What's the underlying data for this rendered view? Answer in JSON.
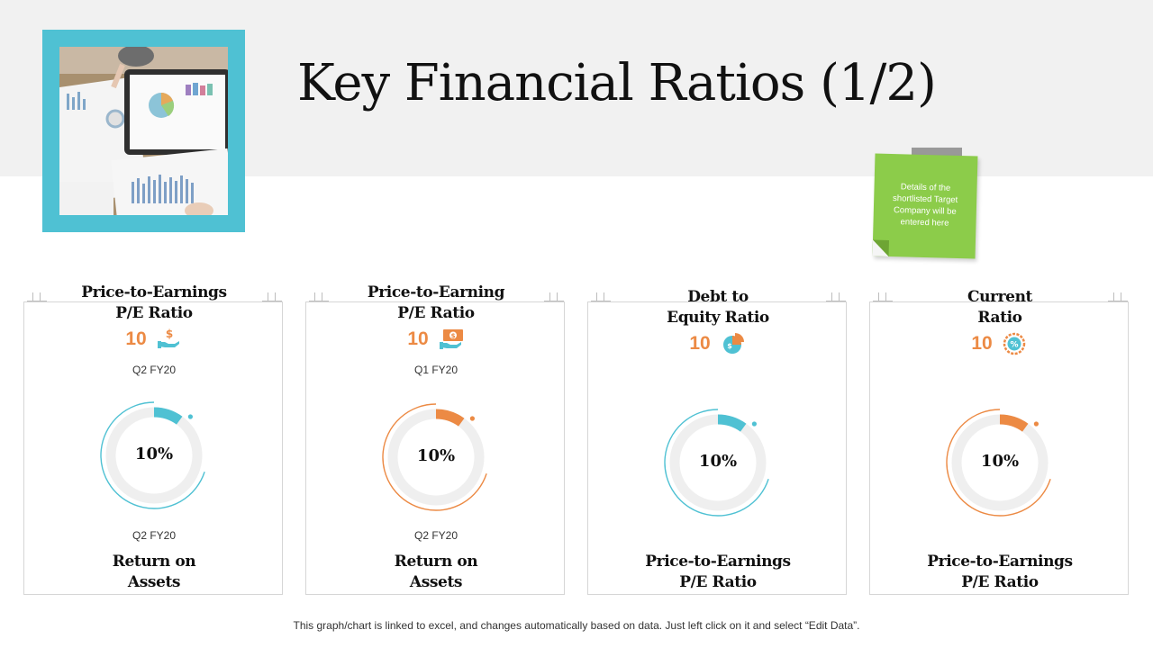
{
  "title": "Key Financial Ratios (1/2)",
  "sticky_note": {
    "line1": "Details of the",
    "line2": "shortlisted Target",
    "line3": "Company will be",
    "line4": "entered here"
  },
  "cards": [
    {
      "head1": "Price-to-Earnings",
      "head2": "P/E Ratio",
      "value": "10",
      "icon": "dollar-hand-icon",
      "period_top": "Q2 FY20",
      "donut_label": "10%",
      "donut_fraction": 0.1,
      "accent": "#4fc1d3",
      "period_bottom": "Q2 FY20",
      "foot1": "Return on",
      "foot2": "Assets"
    },
    {
      "head1": "Price-to-Earning",
      "head2": "P/E Ratio",
      "value": "10",
      "icon": "cash-hand-icon",
      "period_top": "Q1 FY20",
      "donut_label": "10%",
      "donut_fraction": 0.1,
      "accent": "#ec8a44",
      "period_bottom": "Q2 FY20",
      "foot1": "Return on",
      "foot2": "Assets"
    },
    {
      "head1": "Debt to",
      "head2": "Equity Ratio",
      "value": "10",
      "icon": "pie-dollar-icon",
      "donut_label": "10%",
      "donut_fraction": 0.1,
      "accent": "#4fc1d3",
      "foot1": "Price-to-Earnings",
      "foot2": "P/E Ratio"
    },
    {
      "head1": "Current",
      "head2": "Ratio",
      "value": "10",
      "icon": "percent-badge-icon",
      "donut_label": "10%",
      "donut_fraction": 0.1,
      "accent": "#ec8a44",
      "foot1": "Price-to-Earnings",
      "foot2": "P/E Ratio"
    }
  ],
  "footnote": "This graph/chart is linked to excel, and changes automatically based on data. Just left click on it and select “Edit Data”."
}
